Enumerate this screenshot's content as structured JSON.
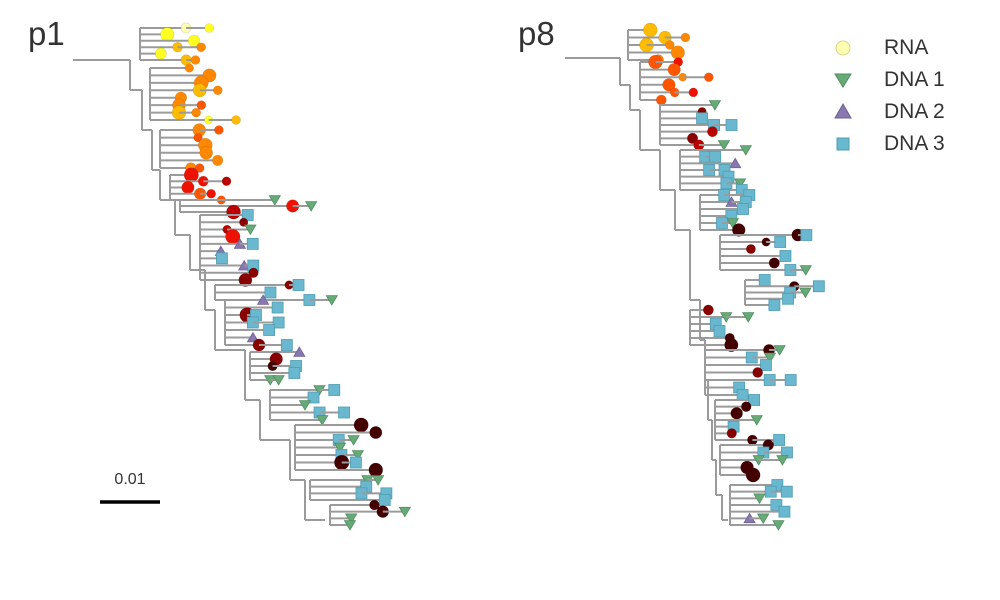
{
  "panels": [
    {
      "id": "p1",
      "label": "p1"
    },
    {
      "id": "p8",
      "label": "p8"
    }
  ],
  "legend": [
    {
      "label": "RNA",
      "shape": "circle",
      "fill": "#ffffb2",
      "stroke": "#d8d68c"
    },
    {
      "label": "DNA 1",
      "shape": "triangle-down",
      "fill": "#66aa77",
      "stroke": "#4e8e5e"
    },
    {
      "label": "DNA 2",
      "shape": "triangle-up",
      "fill": "#8878b0",
      "stroke": "#6e5f96"
    },
    {
      "label": "DNA 3",
      "shape": "square",
      "fill": "#6ab8cf",
      "stroke": "#4f9db3"
    }
  ],
  "scale_bar": {
    "label": "0.01"
  },
  "colors": {
    "branch": "#9b9b9b",
    "rna_time_gradient": [
      "#ffffb2",
      "#ffff22",
      "#ffbb00",
      "#ff8800",
      "#ff5500",
      "#ee1100",
      "#bb0000",
      "#880000",
      "#440000"
    ]
  }
}
